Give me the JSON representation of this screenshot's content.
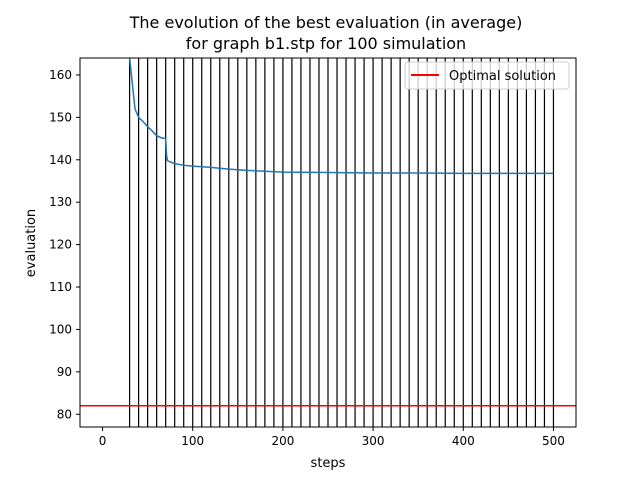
{
  "chart_data": {
    "type": "line",
    "title_line1": "The evolution of the best evaluation (in average)",
    "title_line2": "for graph b1.stp for 100 simulation",
    "xlabel": "steps",
    "ylabel": "evaluation",
    "xlim": [
      -25,
      525
    ],
    "ylim": [
      77,
      164
    ],
    "xticks": [
      0,
      100,
      200,
      300,
      400,
      500
    ],
    "yticks": [
      80,
      90,
      100,
      110,
      120,
      130,
      140,
      150,
      160
    ],
    "grid": false,
    "legend_position": "top-right",
    "series": [
      {
        "name": "",
        "color": "#1f77b4",
        "x": [
          30,
          33,
          36,
          40,
          45,
          50,
          55,
          60,
          65,
          70,
          71,
          72,
          75,
          80,
          90,
          100,
          120,
          140,
          160,
          180,
          200,
          250,
          300,
          350,
          400,
          450,
          500
        ],
        "y": [
          164,
          158,
          152,
          150,
          149,
          147.8,
          146.8,
          145.7,
          145.2,
          145,
          141,
          139.8,
          139.5,
          139.1,
          138.7,
          138.5,
          138.2,
          137.8,
          137.5,
          137.3,
          137.1,
          137,
          136.9,
          136.9,
          136.8,
          136.8,
          136.8
        ]
      }
    ],
    "optimal": {
      "name": "Optimal solution",
      "value": 82,
      "color": "#ff0000"
    },
    "vertical_lines": {
      "color": "#000000",
      "x": [
        30,
        40,
        50,
        60,
        70,
        80,
        90,
        100,
        110,
        120,
        130,
        140,
        150,
        160,
        170,
        180,
        190,
        200,
        210,
        220,
        230,
        240,
        250,
        260,
        270,
        280,
        290,
        300,
        310,
        320,
        330,
        340,
        350,
        360,
        370,
        380,
        390,
        400,
        410,
        420,
        430,
        440,
        450,
        460,
        470,
        480,
        490,
        500
      ]
    }
  }
}
